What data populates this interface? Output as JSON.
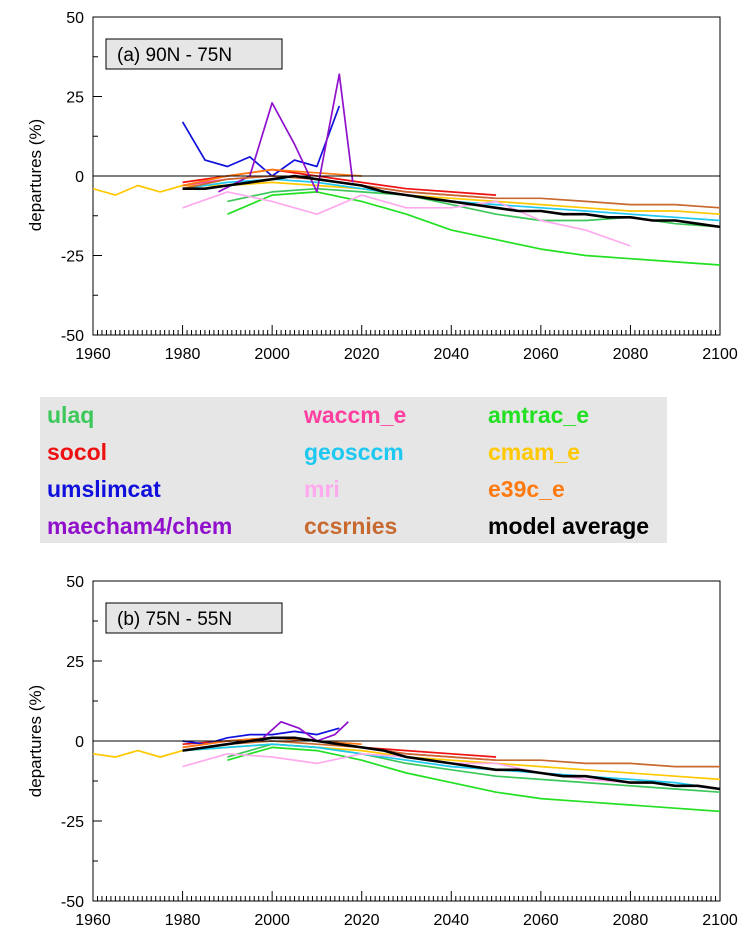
{
  "panels": [
    {
      "panel_label": "(a) 90N - 75N",
      "ylabel": "departures (%)"
    },
    {
      "panel_label": "(b) 75N - 55N",
      "ylabel": "departures (%)"
    }
  ],
  "legend": [
    {
      "label": "ulaq",
      "color": "#3cc85a"
    },
    {
      "label": "waccm_e",
      "color": "#ff3fa0"
    },
    {
      "label": "amtrac_e",
      "color": "#22e022"
    },
    {
      "label": "socol",
      "color": "#ee1111"
    },
    {
      "label": "geosccm",
      "color": "#1ec8f0"
    },
    {
      "label": "cmam_e",
      "color": "#ffc800"
    },
    {
      "label": "umslimcat",
      "color": "#1010dd"
    },
    {
      "label": "mri",
      "color": "#ffaaee"
    },
    {
      "label": "e39c_e",
      "color": "#ff7a10"
    },
    {
      "label": "maecham4/chem",
      "color": "#9010cc"
    },
    {
      "label": "ccsrnies",
      "color": "#c86a30"
    },
    {
      "label": "model average",
      "color": "#000000"
    }
  ],
  "chart_data": [
    {
      "type": "line",
      "title": "(a) 90N - 75N",
      "xlabel": "",
      "ylabel": "departures (%)",
      "xlim": [
        1960,
        2100
      ],
      "ylim": [
        -50,
        50
      ],
      "xticks": [
        1960,
        1980,
        2000,
        2020,
        2040,
        2060,
        2080,
        2100
      ],
      "yticks": [
        -50,
        -25,
        0,
        25,
        50
      ],
      "reference_line": 0,
      "series": [
        {
          "name": "cmam_e",
          "x": [
            1960,
            1965,
            1970,
            1975,
            1980,
            1990,
            2000,
            2010,
            2020,
            2030,
            2040,
            2050,
            2060,
            2070,
            2080,
            2090,
            2100
          ],
          "y": [
            -4,
            -6,
            -3,
            -5,
            -3,
            -3,
            -2,
            -3,
            -4,
            -6,
            -7,
            -8,
            -9,
            -10,
            -11,
            -11,
            -12
          ]
        },
        {
          "name": "ulaq",
          "x": [
            1990,
            2000,
            2010,
            2020,
            2030,
            2040,
            2050,
            2060,
            2070,
            2080,
            2090,
            2100
          ],
          "y": [
            -8,
            -5,
            -4,
            -5,
            -6,
            -9,
            -12,
            -14,
            -14,
            -13,
            -15,
            -16
          ]
        },
        {
          "name": "amtrac_e",
          "x": [
            1990,
            2000,
            2010,
            2020,
            2030,
            2040,
            2050,
            2060,
            2070,
            2080,
            2090,
            2100
          ],
          "y": [
            -12,
            -6,
            -5,
            -8,
            -12,
            -17,
            -20,
            -23,
            -25,
            -26,
            -27,
            -28
          ]
        },
        {
          "name": "waccm_e",
          "x": [
            1980,
            1990,
            2000,
            2010,
            2020,
            2030,
            2040,
            2050
          ],
          "y": [
            -3,
            -1,
            0,
            -1,
            -3,
            -5,
            -6,
            -7
          ]
        },
        {
          "name": "socol",
          "x": [
            1980,
            1990,
            2000,
            2010,
            2020,
            2030,
            2040,
            2050
          ],
          "y": [
            -2,
            0,
            2,
            0,
            -2,
            -4,
            -5,
            -6
          ]
        },
        {
          "name": "geosccm",
          "x": [
            1980,
            1990,
            2000,
            2010,
            2020,
            2030,
            2040,
            2050,
            2060,
            2070,
            2080,
            2090,
            2100
          ],
          "y": [
            -4,
            -2,
            -1,
            -2,
            -4,
            -6,
            -8,
            -9,
            -10,
            -11,
            -12,
            -13,
            -14
          ]
        },
        {
          "name": "umslimcat",
          "x": [
            1980,
            1985,
            1990,
            1995,
            2000,
            2005,
            2010,
            2015
          ],
          "y": [
            17,
            5,
            3,
            6,
            0,
            5,
            3,
            22
          ]
        },
        {
          "name": "mri",
          "x": [
            1980,
            1990,
            2000,
            2010,
            2020,
            2030,
            2040,
            2050,
            2060,
            2070,
            2080
          ],
          "y": [
            -10,
            -5,
            -8,
            -12,
            -6,
            -10,
            -10,
            -8,
            -14,
            -17,
            -22
          ]
        },
        {
          "name": "e39c_e",
          "x": [
            1980,
            1990,
            2000,
            2010,
            2020
          ],
          "y": [
            -3,
            0,
            2,
            1,
            0
          ]
        },
        {
          "name": "maecham4/chem",
          "x": [
            1988,
            1995,
            2000,
            2005,
            2010,
            2015,
            2018
          ],
          "y": [
            -5,
            0,
            23,
            10,
            -5,
            32,
            -2
          ]
        },
        {
          "name": "ccsrnies",
          "x": [
            1980,
            1990,
            2000,
            2010,
            2020,
            2030,
            2040,
            2050,
            2060,
            2070,
            2080,
            2090,
            2100
          ],
          "y": [
            -4,
            -1,
            0,
            -1,
            -3,
            -5,
            -6,
            -7,
            -7,
            -8,
            -9,
            -9,
            -10
          ]
        },
        {
          "name": "model average",
          "x": [
            1980,
            1985,
            1990,
            1995,
            2000,
            2005,
            2010,
            2015,
            2020,
            2025,
            2030,
            2035,
            2040,
            2045,
            2050,
            2055,
            2060,
            2065,
            2070,
            2075,
            2080,
            2085,
            2090,
            2095,
            2100
          ],
          "y": [
            -4,
            -4,
            -3,
            -2,
            -1,
            0,
            -1,
            -2,
            -3,
            -5,
            -6,
            -7,
            -8,
            -9,
            -10,
            -11,
            -11,
            -12,
            -12,
            -13,
            -13,
            -14,
            -14,
            -15,
            -16
          ]
        }
      ]
    },
    {
      "type": "line",
      "title": "(b) 75N - 55N",
      "xlabel": "",
      "ylabel": "departures (%)",
      "xlim": [
        1960,
        2100
      ],
      "ylim": [
        -50,
        50
      ],
      "xticks": [
        1960,
        1980,
        2000,
        2020,
        2040,
        2060,
        2080,
        2100
      ],
      "yticks": [
        -50,
        -25,
        0,
        25,
        50
      ],
      "reference_line": 0,
      "series": [
        {
          "name": "cmam_e",
          "x": [
            1960,
            1965,
            1970,
            1975,
            1980,
            1990,
            2000,
            2010,
            2020,
            2030,
            2040,
            2050,
            2060,
            2070,
            2080,
            2090,
            2100
          ],
          "y": [
            -4,
            -5,
            -3,
            -5,
            -3,
            -2,
            -1,
            -2,
            -3,
            -5,
            -6,
            -7,
            -8,
            -9,
            -10,
            -11,
            -12
          ]
        },
        {
          "name": "ulaq",
          "x": [
            1990,
            2000,
            2010,
            2020,
            2030,
            2040,
            2050,
            2060,
            2070,
            2080,
            2090,
            2100
          ],
          "y": [
            -5,
            -1,
            -2,
            -4,
            -7,
            -9,
            -11,
            -12,
            -13,
            -14,
            -15,
            -16
          ]
        },
        {
          "name": "amtrac_e",
          "x": [
            1990,
            2000,
            2010,
            2020,
            2030,
            2040,
            2050,
            2060,
            2070,
            2080,
            2090,
            2100
          ],
          "y": [
            -6,
            -2,
            -3,
            -6,
            -10,
            -13,
            -16,
            -18,
            -19,
            -20,
            -21,
            -22
          ]
        },
        {
          "name": "waccm_e",
          "x": [
            1980,
            1990,
            2000,
            2010,
            2020,
            2030,
            2040,
            2050
          ],
          "y": [
            -2,
            0,
            1,
            0,
            -2,
            -4,
            -5,
            -6
          ]
        },
        {
          "name": "socol",
          "x": [
            1980,
            1990,
            2000,
            2010,
            2020,
            2030,
            2040,
            2050
          ],
          "y": [
            -1,
            0,
            1,
            0,
            -2,
            -3,
            -4,
            -5
          ]
        },
        {
          "name": "geosccm",
          "x": [
            1980,
            1990,
            2000,
            2010,
            2020,
            2030,
            2040,
            2050,
            2060,
            2070,
            2080,
            2090,
            2100
          ],
          "y": [
            -3,
            -2,
            -1,
            -2,
            -4,
            -6,
            -8,
            -9,
            -10,
            -11,
            -12,
            -13,
            -15
          ]
        },
        {
          "name": "umslimcat",
          "x": [
            1980,
            1985,
            1990,
            1995,
            2000,
            2005,
            2010,
            2015
          ],
          "y": [
            0,
            -1,
            1,
            2,
            2,
            3,
            2,
            4
          ]
        },
        {
          "name": "mri",
          "x": [
            1980,
            1990,
            2000,
            2010,
            2020,
            2030,
            2040,
            2050,
            2060,
            2070,
            2080
          ],
          "y": [
            -8,
            -4,
            -5,
            -7,
            -4,
            -5,
            -7,
            -7,
            -10,
            -12,
            -13
          ]
        },
        {
          "name": "e39c_e",
          "x": [
            1980,
            1990,
            2000,
            2010,
            2020
          ],
          "y": [
            -2,
            0,
            1,
            0,
            -1
          ]
        },
        {
          "name": "maecham4/chem",
          "x": [
            1998,
            2002,
            2006,
            2010,
            2014,
            2017
          ],
          "y": [
            1,
            6,
            4,
            0,
            2,
            6
          ]
        },
        {
          "name": "ccsrnies",
          "x": [
            1980,
            1990,
            2000,
            2010,
            2020,
            2030,
            2040,
            2050,
            2060,
            2070,
            2080,
            2090,
            2100
          ],
          "y": [
            -3,
            -1,
            0,
            -1,
            -2,
            -4,
            -5,
            -6,
            -6,
            -7,
            -7,
            -8,
            -8
          ]
        },
        {
          "name": "model average",
          "x": [
            1980,
            1985,
            1990,
            1995,
            2000,
            2005,
            2010,
            2015,
            2020,
            2025,
            2030,
            2035,
            2040,
            2045,
            2050,
            2055,
            2060,
            2065,
            2070,
            2075,
            2080,
            2085,
            2090,
            2095,
            2100
          ],
          "y": [
            -3,
            -2,
            -1,
            0,
            1,
            1,
            0,
            -1,
            -2,
            -3,
            -5,
            -6,
            -7,
            -8,
            -9,
            -9,
            -10,
            -11,
            -11,
            -12,
            -13,
            -13,
            -14,
            -14,
            -15
          ]
        }
      ]
    }
  ]
}
